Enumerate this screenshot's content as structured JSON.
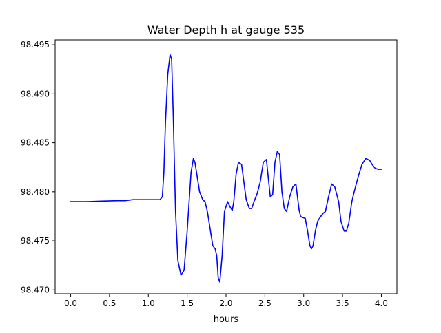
{
  "chart_data": {
    "type": "line",
    "title": "Water Depth h at gauge 535",
    "xlabel": "hours",
    "ylabel": "",
    "xlim": [
      -0.2,
      4.2
    ],
    "ylim": [
      98.4696,
      98.4955
    ],
    "x_ticks": [
      0.0,
      0.5,
      1.0,
      1.5,
      2.0,
      2.5,
      3.0,
      3.5,
      4.0
    ],
    "x_tick_labels": [
      "0.0",
      "0.5",
      "1.0",
      "1.5",
      "2.0",
      "2.5",
      "3.0",
      "3.5",
      "4.0"
    ],
    "y_ticks": [
      98.47,
      98.475,
      98.48,
      98.485,
      98.49,
      98.495
    ],
    "y_tick_labels": [
      "98.470",
      "98.475",
      "98.480",
      "98.485",
      "98.490",
      "98.495"
    ],
    "grid": false,
    "series": [
      {
        "color": "#0000ff",
        "x": [
          0.0,
          0.2,
          0.4,
          0.6,
          0.7,
          0.8,
          0.9,
          1.0,
          1.05,
          1.1,
          1.15,
          1.18,
          1.2,
          1.22,
          1.25,
          1.28,
          1.3,
          1.32,
          1.35,
          1.38,
          1.42,
          1.46,
          1.5,
          1.55,
          1.58,
          1.6,
          1.63,
          1.66,
          1.7,
          1.73,
          1.76,
          1.8,
          1.83,
          1.86,
          1.88,
          1.9,
          1.92,
          1.95,
          1.98,
          2.02,
          2.05,
          2.08,
          2.1,
          2.13,
          2.16,
          2.2,
          2.23,
          2.26,
          2.3,
          2.33,
          2.36,
          2.4,
          2.44,
          2.48,
          2.52,
          2.55,
          2.57,
          2.6,
          2.63,
          2.66,
          2.69,
          2.72,
          2.75,
          2.78,
          2.82,
          2.86,
          2.9,
          2.94,
          2.96,
          2.98,
          3.02,
          3.05,
          3.08,
          3.1,
          3.12,
          3.15,
          3.18,
          3.22,
          3.25,
          3.28,
          3.32,
          3.36,
          3.4,
          3.45,
          3.48,
          3.52,
          3.55,
          3.58,
          3.62,
          3.65,
          3.7,
          3.75,
          3.8,
          3.85,
          3.88,
          3.92,
          3.96,
          4.0
        ],
        "y": [
          98.479,
          98.479,
          98.47905,
          98.4791,
          98.4791,
          98.4792,
          98.4792,
          98.4792,
          98.4792,
          98.4792,
          98.4792,
          98.4795,
          98.482,
          98.487,
          98.492,
          98.494,
          98.4935,
          98.488,
          98.478,
          98.473,
          98.4715,
          98.472,
          98.476,
          98.482,
          98.4834,
          98.483,
          98.4815,
          98.48,
          98.4792,
          98.479,
          98.478,
          98.476,
          98.4745,
          98.4742,
          98.4735,
          98.4712,
          98.4708,
          98.4735,
          98.478,
          98.479,
          98.4785,
          98.4781,
          98.479,
          98.4818,
          98.483,
          98.4828,
          98.481,
          98.4792,
          98.4783,
          98.4783,
          98.479,
          98.4798,
          98.481,
          98.483,
          98.4833,
          98.481,
          98.4795,
          98.4797,
          98.483,
          98.4841,
          98.4838,
          98.48,
          98.4783,
          98.478,
          98.4795,
          98.4805,
          98.4808,
          98.4782,
          98.4775,
          98.4774,
          98.4773,
          98.476,
          98.4745,
          98.4742,
          98.4745,
          98.476,
          98.477,
          98.4775,
          98.4778,
          98.478,
          98.4795,
          98.4808,
          98.4805,
          98.479,
          98.477,
          98.476,
          98.476,
          98.4768,
          98.479,
          98.48,
          98.4815,
          98.4828,
          98.4834,
          98.4832,
          98.4828,
          98.4824,
          98.4823,
          98.4823
        ]
      }
    ]
  }
}
